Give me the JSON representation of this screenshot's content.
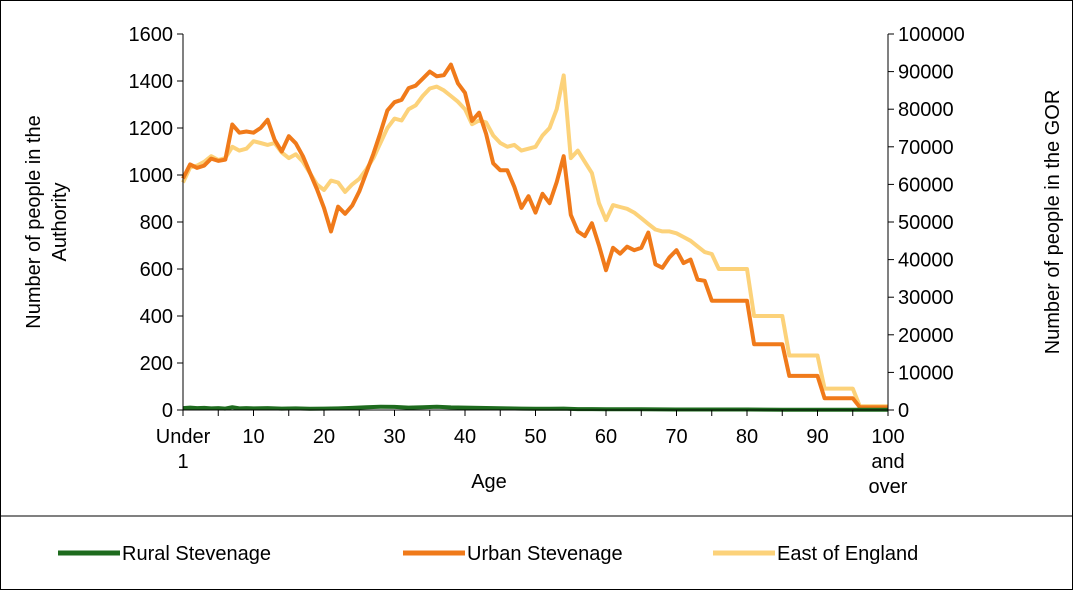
{
  "chart_data": {
    "type": "line",
    "title": "",
    "xlabel": "Age",
    "ylabel": "Number of people in the Authority",
    "y2label": "Number of people in the GOR",
    "ylim": [
      0,
      1600
    ],
    "y2lim": [
      0,
      100000
    ],
    "xlim": [
      0,
      100
    ],
    "yticks": [
      "0",
      "200",
      "400",
      "600",
      "800",
      "1000",
      "1200",
      "1400",
      "1600"
    ],
    "y2ticks": [
      "0",
      "10000",
      "20000",
      "30000",
      "40000",
      "50000",
      "60000",
      "70000",
      "80000",
      "90000",
      "100000"
    ],
    "xticks": [
      {
        "x": 0,
        "lines": [
          "Under",
          "1"
        ]
      },
      {
        "x": 10,
        "lines": [
          "10"
        ]
      },
      {
        "x": 20,
        "lines": [
          "20"
        ]
      },
      {
        "x": 30,
        "lines": [
          "30"
        ]
      },
      {
        "x": 40,
        "lines": [
          "40"
        ]
      },
      {
        "x": 50,
        "lines": [
          "50"
        ]
      },
      {
        "x": 60,
        "lines": [
          "60"
        ]
      },
      {
        "x": 70,
        "lines": [
          "70"
        ]
      },
      {
        "x": 80,
        "lines": [
          "80"
        ]
      },
      {
        "x": 90,
        "lines": [
          "90"
        ]
      },
      {
        "x": 100,
        "lines": [
          "100",
          "and",
          "over"
        ]
      }
    ],
    "grid": false,
    "legend_position": "bottom",
    "series": [
      {
        "name": "Rural Stevenage",
        "axis": "left",
        "color": "#1e6b1e",
        "x": [
          0,
          1,
          2,
          3,
          4,
          5,
          6,
          7,
          8,
          9,
          10,
          12,
          14,
          16,
          18,
          20,
          22,
          24,
          26,
          28,
          30,
          32,
          34,
          36,
          38,
          40,
          42,
          44,
          46,
          48,
          50,
          52,
          54,
          56,
          58,
          60,
          65,
          70,
          75,
          80,
          85,
          90,
          95,
          100
        ],
        "values": [
          8,
          10,
          8,
          9,
          7,
          8,
          6,
          12,
          7,
          8,
          7,
          8,
          6,
          7,
          5,
          6,
          7,
          9,
          12,
          14,
          13,
          10,
          12,
          14,
          11,
          10,
          9,
          8,
          7,
          6,
          5,
          5,
          6,
          4,
          4,
          3,
          3,
          2,
          2,
          2,
          1,
          1,
          1,
          1
        ]
      },
      {
        "name": "Urban Stevenage",
        "axis": "left",
        "color": "#f07a1a",
        "x": [
          0,
          1,
          2,
          3,
          4,
          5,
          6,
          7,
          8,
          9,
          10,
          11,
          12,
          13,
          14,
          15,
          16,
          17,
          18,
          19,
          20,
          21,
          22,
          23,
          24,
          25,
          26,
          27,
          28,
          29,
          30,
          31,
          32,
          33,
          34,
          35,
          36,
          37,
          38,
          39,
          40,
          41,
          42,
          43,
          44,
          45,
          46,
          47,
          48,
          49,
          50,
          51,
          52,
          53,
          54,
          55,
          56,
          57,
          58,
          59,
          60,
          61,
          62,
          63,
          64,
          65,
          66,
          67,
          68,
          69,
          70,
          71,
          72,
          73,
          74,
          75,
          76,
          77,
          78,
          79,
          80,
          81,
          82,
          83,
          84,
          85,
          86,
          87,
          88,
          89,
          90,
          91,
          92,
          93,
          94,
          95,
          96,
          97,
          98,
          99,
          100
        ],
        "values": [
          985,
          1045,
          1030,
          1040,
          1070,
          1060,
          1065,
          1215,
          1180,
          1185,
          1180,
          1200,
          1235,
          1150,
          1100,
          1165,
          1135,
          1080,
          1010,
          940,
          860,
          760,
          865,
          835,
          870,
          930,
          1010,
          1090,
          1180,
          1275,
          1310,
          1320,
          1370,
          1380,
          1410,
          1440,
          1420,
          1425,
          1470,
          1390,
          1350,
          1230,
          1265,
          1175,
          1050,
          1020,
          1020,
          950,
          860,
          910,
          840,
          920,
          880,
          970,
          1080,
          830,
          760,
          740,
          795,
          700,
          595,
          690,
          665,
          695,
          680,
          690,
          755,
          620,
          605,
          650,
          680,
          625,
          640,
          555,
          550,
          465,
          465,
          465,
          465,
          465,
          465,
          280,
          280,
          280,
          280,
          280,
          145,
          145,
          145,
          145,
          145,
          50,
          50,
          50,
          50,
          50,
          12,
          12,
          12,
          12,
          12
        ]
      },
      {
        "name": "East of England",
        "axis": "right",
        "color": "#fcd27a",
        "x": [
          0,
          1,
          2,
          3,
          4,
          5,
          6,
          7,
          8,
          9,
          10,
          11,
          12,
          13,
          14,
          15,
          16,
          17,
          18,
          19,
          20,
          21,
          22,
          23,
          24,
          25,
          26,
          27,
          28,
          29,
          30,
          31,
          32,
          33,
          34,
          35,
          36,
          37,
          38,
          39,
          40,
          41,
          42,
          43,
          44,
          45,
          46,
          47,
          48,
          49,
          50,
          51,
          52,
          53,
          54,
          55,
          56,
          57,
          58,
          59,
          60,
          61,
          62,
          63,
          64,
          65,
          66,
          67,
          68,
          69,
          70,
          71,
          72,
          73,
          74,
          75,
          76,
          77,
          78,
          79,
          80,
          81,
          82,
          83,
          84,
          85,
          86,
          87,
          88,
          89,
          90,
          91,
          92,
          93,
          94,
          95,
          96,
          97,
          98,
          99,
          100
        ],
        "values": [
          60500,
          64500,
          65000,
          66000,
          67500,
          66500,
          67000,
          70000,
          69000,
          69500,
          71500,
          71000,
          70500,
          71000,
          68500,
          67000,
          68000,
          66000,
          63000,
          60000,
          58500,
          61000,
          60500,
          58000,
          60000,
          61500,
          64000,
          67000,
          71000,
          75000,
          77500,
          77000,
          80000,
          81000,
          83500,
          85500,
          86000,
          85000,
          83500,
          82000,
          80000,
          76000,
          77000,
          76500,
          73000,
          71000,
          70000,
          70500,
          69000,
          69500,
          70000,
          73000,
          75000,
          80000,
          89000,
          67000,
          69000,
          66000,
          63000,
          55000,
          50500,
          54500,
          54000,
          53500,
          52500,
          51000,
          49500,
          48000,
          47500,
          47500,
          47000,
          46000,
          45000,
          43500,
          42000,
          41500,
          37500,
          37500,
          37500,
          37500,
          37500,
          25000,
          25000,
          25000,
          25000,
          25000,
          14500,
          14500,
          14500,
          14500,
          14500,
          5700,
          5700,
          5700,
          5700,
          5700,
          1000,
          1000,
          1000,
          1000,
          1000
        ]
      }
    ]
  }
}
